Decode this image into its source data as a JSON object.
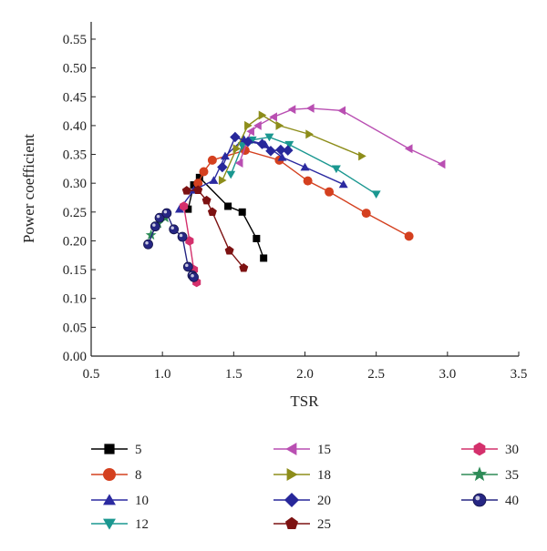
{
  "chart_data": {
    "type": "line",
    "xlabel": "TSR",
    "ylabel": "Power coefficient",
    "xlim": [
      0.5,
      3.5
    ],
    "ylim": [
      0.0,
      0.58
    ],
    "x_ticks": [
      "0.5",
      "1.0",
      "1.5",
      "2.0",
      "2.5",
      "3.0",
      "3.5"
    ],
    "y_ticks": [
      "0.00",
      "0.05",
      "0.10",
      "0.15",
      "0.20",
      "0.25",
      "0.30",
      "0.35",
      "0.40",
      "0.45",
      "0.50",
      "0.55"
    ],
    "grid": false,
    "legend_position": "bottom",
    "series": [
      {
        "name": "5",
        "color": "#000000",
        "marker": "square",
        "x": [
          1.18,
          1.22,
          1.26,
          1.46,
          1.56,
          1.66,
          1.71
        ],
        "y": [
          0.255,
          0.297,
          0.31,
          0.26,
          0.25,
          0.204,
          0.17
        ]
      },
      {
        "name": "8",
        "color": "#d4401f",
        "marker": "circle",
        "x": [
          1.25,
          1.29,
          1.35,
          1.58,
          1.82,
          2.02,
          2.17,
          2.43,
          2.73
        ],
        "y": [
          0.3,
          0.32,
          0.34,
          0.357,
          0.34,
          0.304,
          0.285,
          0.248,
          0.208
        ]
      },
      {
        "name": "10",
        "color": "#2b2aa0",
        "marker": "triangle-up",
        "x": [
          1.12,
          1.22,
          1.36,
          1.44,
          1.57,
          1.72,
          1.84,
          2.0,
          2.27
        ],
        "y": [
          0.255,
          0.288,
          0.305,
          0.347,
          0.377,
          0.367,
          0.345,
          0.328,
          0.298
        ]
      },
      {
        "name": "12",
        "color": "#1a9790",
        "marker": "triangle-down",
        "x": [
          1.48,
          1.56,
          1.63,
          1.75,
          1.89,
          2.22,
          2.5
        ],
        "y": [
          0.315,
          0.365,
          0.375,
          0.38,
          0.367,
          0.325,
          0.281
        ]
      },
      {
        "name": "15",
        "color": "#b94fb2",
        "marker": "triangle-left",
        "x": [
          1.54,
          1.62,
          1.67,
          1.78,
          1.91,
          2.04,
          2.26,
          2.73,
          2.96
        ],
        "y": [
          0.335,
          0.39,
          0.4,
          0.415,
          0.428,
          0.43,
          0.426,
          0.36,
          0.333
        ]
      },
      {
        "name": "18",
        "color": "#8d8d1a",
        "marker": "triangle-right",
        "x": [
          1.42,
          1.52,
          1.6,
          1.7,
          1.82,
          2.03,
          2.4
        ],
        "y": [
          0.305,
          0.36,
          0.4,
          0.418,
          0.4,
          0.385,
          0.347
        ]
      },
      {
        "name": "20",
        "color": "#27279a",
        "marker": "diamond",
        "x": [
          1.42,
          1.51,
          1.6,
          1.7,
          1.76,
          1.83,
          1.88
        ],
        "y": [
          0.328,
          0.38,
          0.372,
          0.368,
          0.356,
          0.358,
          0.357
        ]
      },
      {
        "name": "25",
        "color": "#7d1212",
        "marker": "pentagon",
        "x": [
          1.17,
          1.25,
          1.31,
          1.35,
          1.47,
          1.57
        ],
        "y": [
          0.287,
          0.288,
          0.27,
          0.25,
          0.183,
          0.153
        ]
      },
      {
        "name": "30",
        "color": "#d4306c",
        "marker": "hexagon",
        "x": [
          1.15,
          1.19,
          1.22,
          1.24
        ],
        "y": [
          0.26,
          0.2,
          0.15,
          0.128
        ]
      },
      {
        "name": "35",
        "color": "#2e8b57",
        "marker": "star",
        "x": [
          0.92,
          0.97,
          1.02
        ],
        "y": [
          0.21,
          0.23,
          0.24
        ]
      },
      {
        "name": "40",
        "color": "#262683",
        "marker": "sphere",
        "x": [
          0.9,
          0.95,
          0.98,
          1.03,
          1.08,
          1.14,
          1.18,
          1.21,
          1.22
        ],
        "y": [
          0.194,
          0.225,
          0.24,
          0.248,
          0.22,
          0.207,
          0.155,
          0.14,
          0.137
        ]
      }
    ]
  }
}
